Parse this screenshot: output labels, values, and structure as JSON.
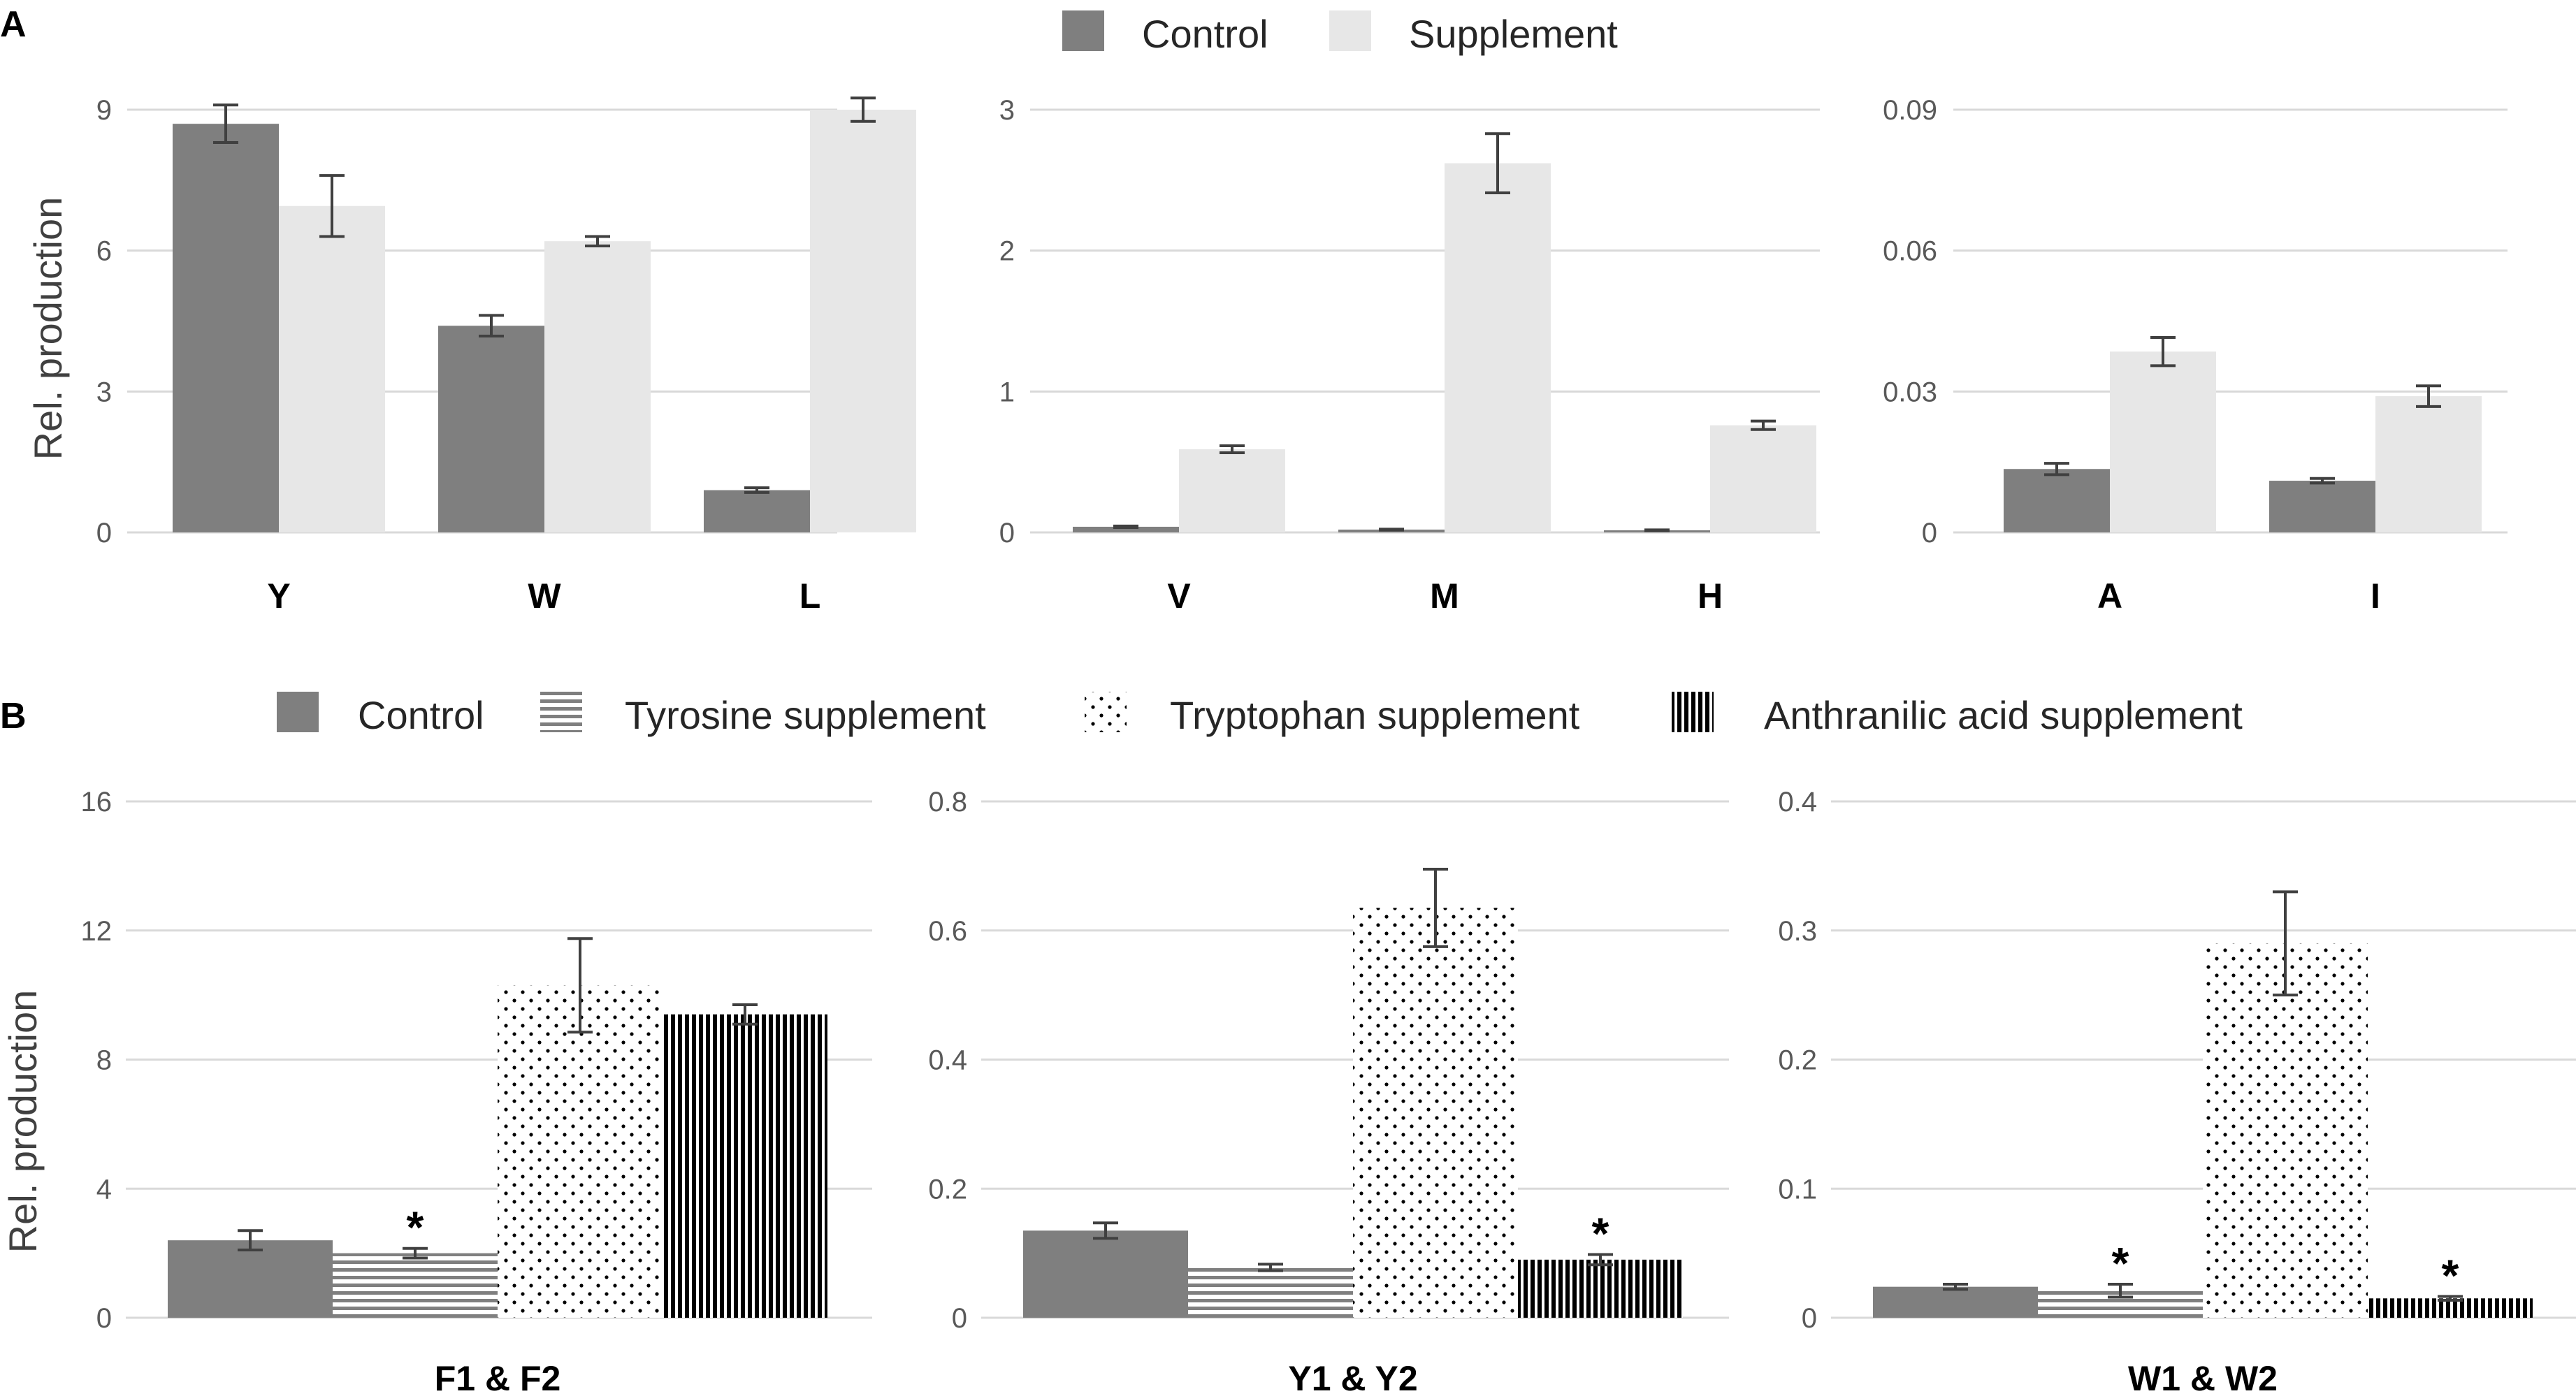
{
  "chart_data": [
    {
      "panel": "A",
      "type": "bar",
      "ylabel": "Rel. production",
      "legend": [
        "Control",
        "Supplement"
      ],
      "legend_position": "top-center",
      "subplots": [
        {
          "categories": [
            "Y",
            "W",
            "L"
          ],
          "ylim": [
            0,
            9
          ],
          "ticks": [
            0,
            3,
            6,
            9
          ],
          "tick_labels": [
            "0",
            "3",
            "6",
            "9"
          ],
          "series": [
            {
              "name": "Control",
              "values": [
                8.7,
                4.4,
                0.9
              ],
              "errors": [
                0.4,
                0.22,
                0.05
              ],
              "stars": [
                false,
                false,
                false
              ]
            },
            {
              "name": "Supplement",
              "values": [
                6.95,
                6.2,
                9.0
              ],
              "errors": [
                0.65,
                0.1,
                0.25
              ],
              "stars": [
                false,
                false,
                false
              ]
            }
          ]
        },
        {
          "categories": [
            "V",
            "M",
            "H"
          ],
          "ylim": [
            0,
            3
          ],
          "ticks": [
            0,
            1,
            2,
            3
          ],
          "tick_labels": [
            "0",
            "1",
            "2",
            "3"
          ],
          "series": [
            {
              "name": "Control",
              "values": [
                0.04,
                0.02,
                0.015
              ],
              "errors": [
                0.005,
                0.003,
                0.003
              ],
              "stars": [
                false,
                false,
                false
              ]
            },
            {
              "name": "Supplement",
              "values": [
                0.59,
                2.62,
                0.76
              ],
              "errors": [
                0.025,
                0.21,
                0.03
              ],
              "stars": [
                false,
                false,
                false
              ]
            }
          ]
        },
        {
          "categories": [
            "A",
            "I"
          ],
          "ylim": [
            0,
            0.09
          ],
          "ticks": [
            0,
            0.03,
            0.06,
            0.09
          ],
          "tick_labels": [
            "0",
            "0.03",
            "0.06",
            "0.09"
          ],
          "series": [
            {
              "name": "Control",
              "values": [
                0.0135,
                0.011
              ],
              "errors": [
                0.0012,
                0.0005
              ],
              "stars": [
                false,
                false
              ]
            },
            {
              "name": "Supplement",
              "values": [
                0.0385,
                0.029
              ],
              "errors": [
                0.003,
                0.0022
              ],
              "stars": [
                false,
                false
              ]
            }
          ]
        }
      ]
    },
    {
      "panel": "B",
      "type": "bar",
      "ylabel": "Rel. production",
      "legend": [
        "Control",
        "Tyrosine supplement",
        "Tryptophan supplement",
        "Anthranilic acid supplement"
      ],
      "legend_position": "top-center",
      "subplots": [
        {
          "categories": [
            "F1 & F2"
          ],
          "ylim": [
            0,
            16
          ],
          "ticks": [
            0,
            4,
            8,
            12,
            16
          ],
          "tick_labels": [
            "0",
            "4",
            "8",
            "12",
            "16"
          ],
          "series": [
            {
              "name": "Control",
              "values": [
                2.4
              ],
              "errors": [
                0.3
              ],
              "stars": [
                false
              ]
            },
            {
              "name": "Tyrosine supplement",
              "values": [
                2.0
              ],
              "errors": [
                0.15
              ],
              "stars": [
                true
              ]
            },
            {
              "name": "Tryptophan supplement",
              "values": [
                10.3
              ],
              "errors": [
                1.45
              ],
              "stars": [
                false
              ]
            },
            {
              "name": "Anthranilic acid supplement",
              "values": [
                9.4
              ],
              "errors": [
                0.3
              ],
              "stars": [
                false
              ]
            }
          ]
        },
        {
          "categories": [
            "Y1 & Y2"
          ],
          "ylim": [
            0,
            0.8
          ],
          "ticks": [
            0,
            0.2,
            0.4,
            0.6,
            0.8
          ],
          "tick_labels": [
            "0",
            "0.2",
            "0.4",
            "0.6",
            "0.8"
          ],
          "series": [
            {
              "name": "Control",
              "values": [
                0.135
              ],
              "errors": [
                0.012
              ],
              "stars": [
                false
              ]
            },
            {
              "name": "Tyrosine supplement",
              "values": [
                0.078
              ],
              "errors": [
                0.005
              ],
              "stars": [
                false
              ]
            },
            {
              "name": "Tryptophan supplement",
              "values": [
                0.635
              ],
              "errors": [
                0.06
              ],
              "stars": [
                false
              ]
            },
            {
              "name": "Anthranilic acid supplement",
              "values": [
                0.09
              ],
              "errors": [
                0.008
              ],
              "stars": [
                true
              ]
            }
          ]
        },
        {
          "categories": [
            "W1 & W2"
          ],
          "ylim": [
            0,
            0.4
          ],
          "ticks": [
            0,
            0.1,
            0.2,
            0.3,
            0.4
          ],
          "tick_labels": [
            "0",
            "0.1",
            "0.2",
            "0.3",
            "0.4"
          ],
          "series": [
            {
              "name": "Control",
              "values": [
                0.024
              ],
              "errors": [
                0.002
              ],
              "stars": [
                false
              ]
            },
            {
              "name": "Tyrosine supplement",
              "values": [
                0.021
              ],
              "errors": [
                0.005
              ],
              "stars": [
                true
              ]
            },
            {
              "name": "Tryptophan supplement",
              "values": [
                0.29
              ],
              "errors": [
                0.04
              ],
              "stars": [
                false
              ]
            },
            {
              "name": "Anthranilic acid supplement",
              "values": [
                0.015
              ],
              "errors": [
                0.0015
              ],
              "stars": [
                true
              ]
            }
          ]
        }
      ]
    }
  ],
  "star_symbol": "*",
  "colors": {
    "control": "#7f7f7f",
    "supplement": "#e7e7e7",
    "pattern": "#7f7f7f",
    "dark_pattern": "#000000"
  }
}
